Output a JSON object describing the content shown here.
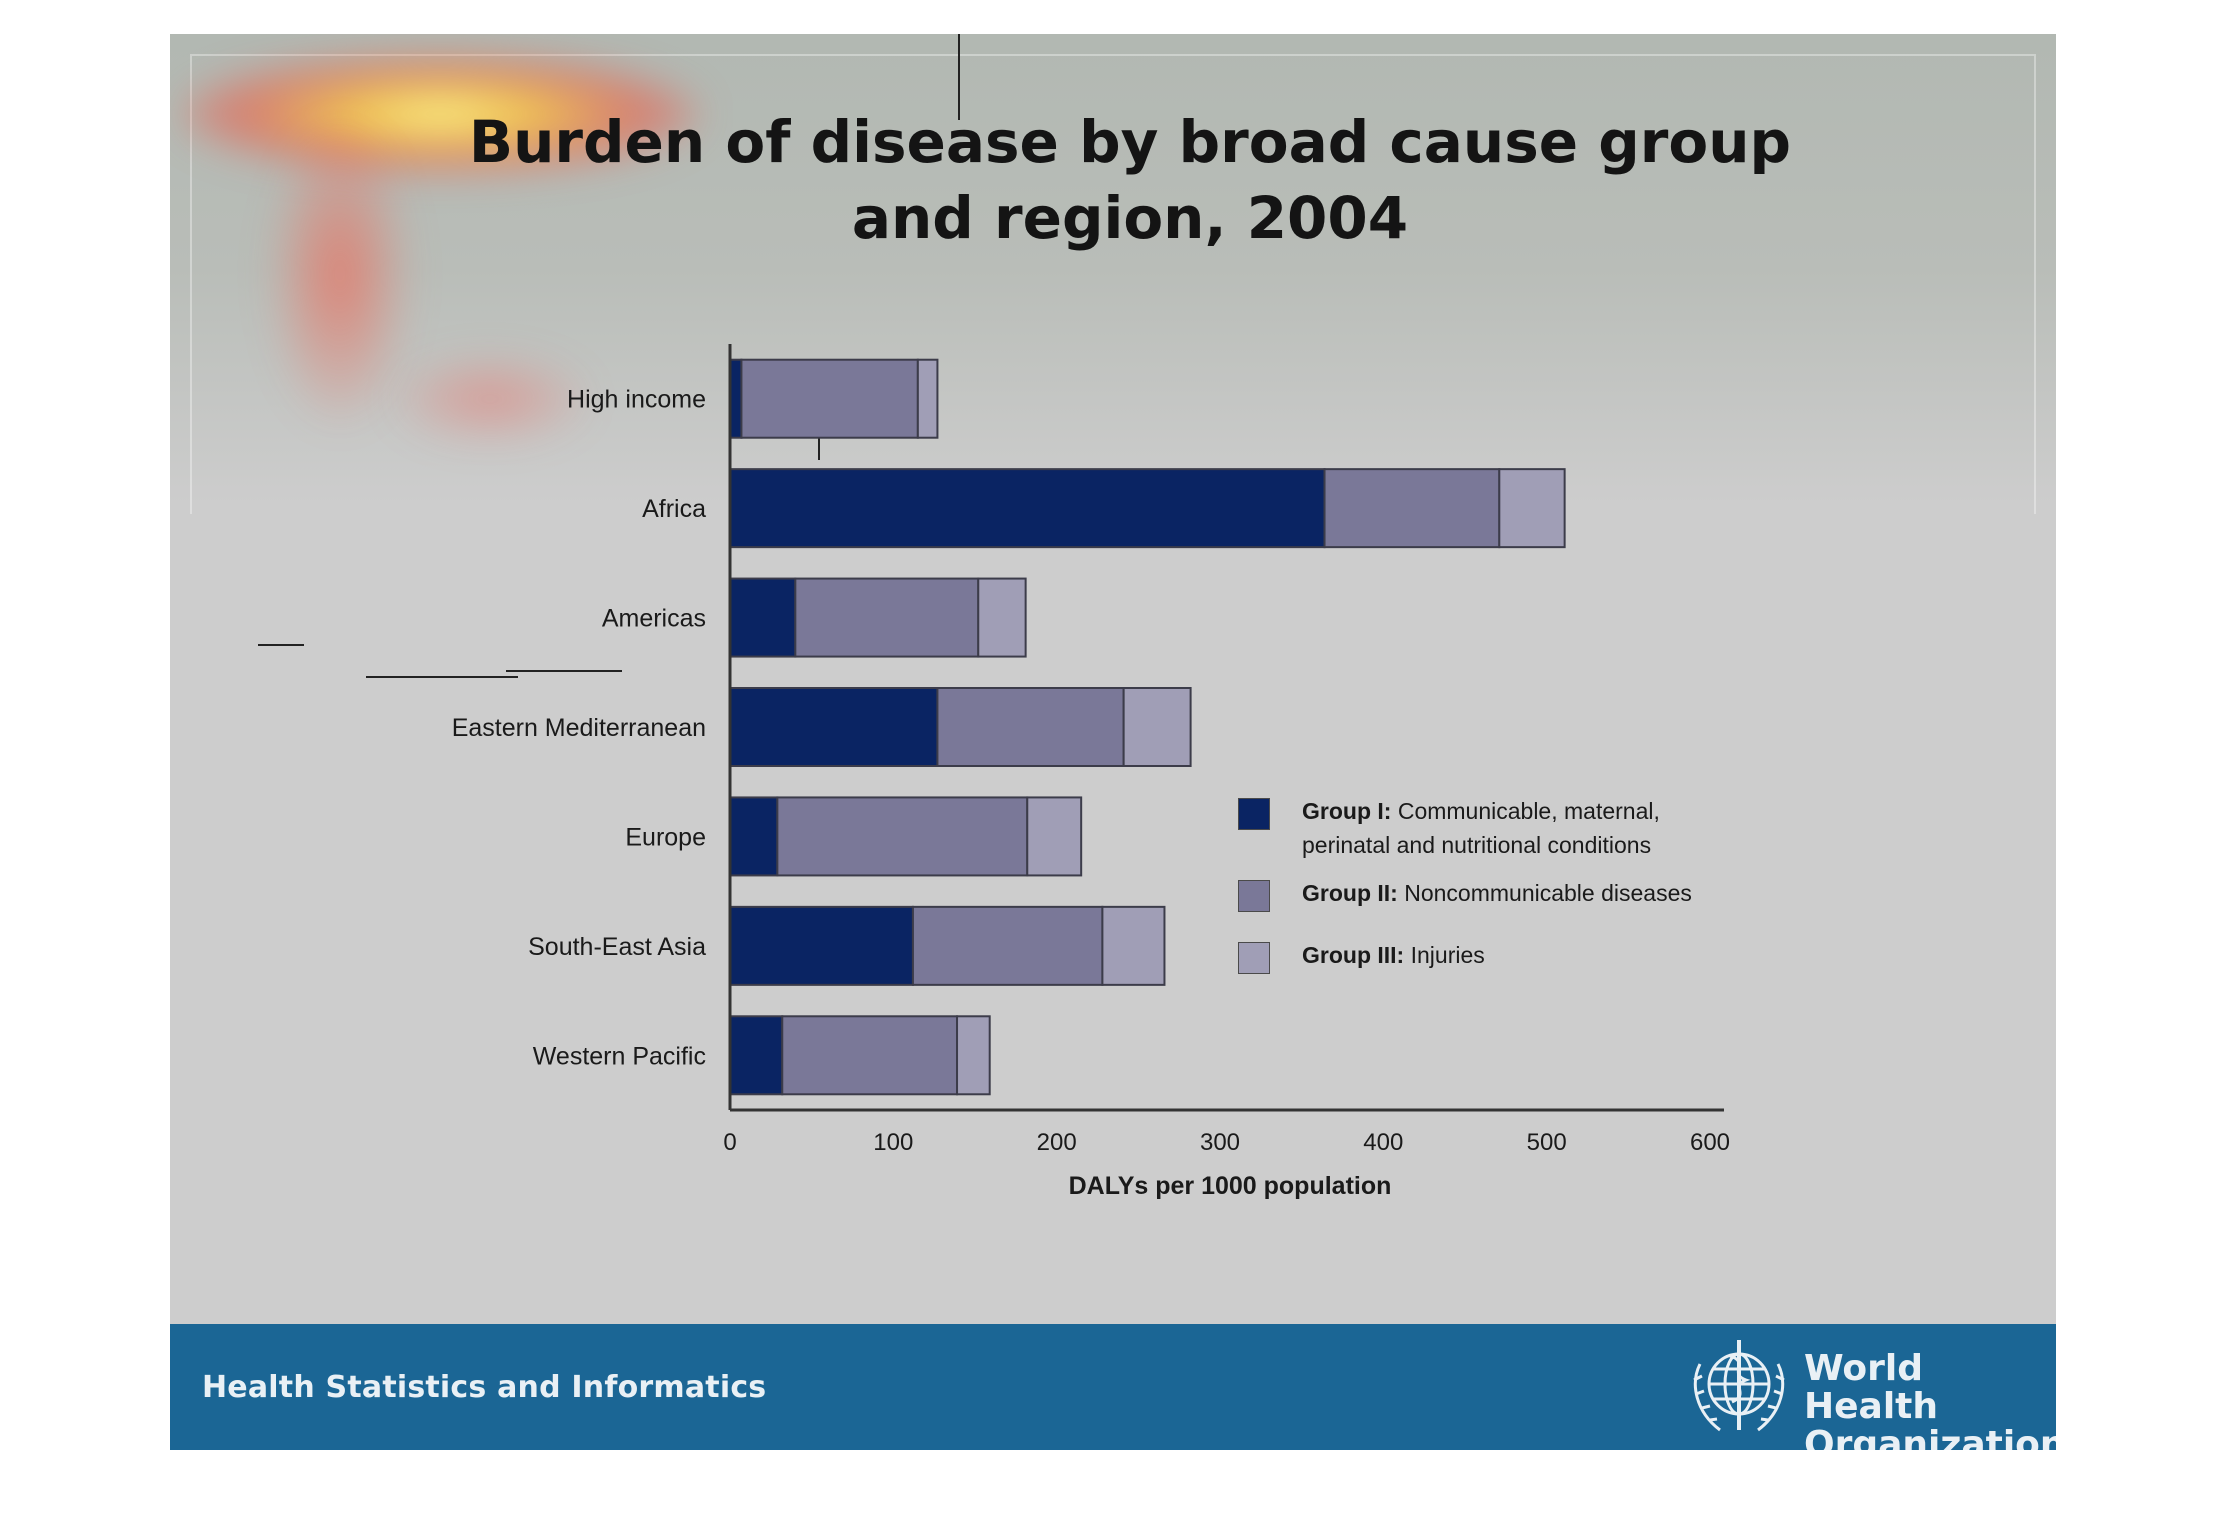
{
  "slide": {
    "title": "Burden of disease by broad cause group and region, 2004"
  },
  "footer": {
    "left_text": "Health Statistics and Informatics",
    "org_line1": "World Health",
    "org_line2": "Organization",
    "logo_icon": "who-emblem-icon"
  },
  "colors": {
    "group1": "#0a2463",
    "group2": "#7a7898",
    "group3": "#a09eb6",
    "footer": "#1b6695"
  },
  "legend": [
    {
      "bold": "Group I:",
      "text": "Communicable, maternal,",
      "text2": "perinatal and nutritional conditions",
      "color": "#0a2463"
    },
    {
      "bold": "Group II:",
      "text": "Noncommunicable diseases",
      "text2": "",
      "color": "#7a7898"
    },
    {
      "bold": "Group III:",
      "text": "Injuries",
      "text2": "",
      "color": "#a09eb6"
    }
  ],
  "chart_data": {
    "type": "bar",
    "orientation": "horizontal",
    "stacked": true,
    "categories": [
      "High income",
      "Africa",
      "Americas",
      "Eastern Mediterranean",
      "Europe",
      "South-East Asia",
      "Western Pacific"
    ],
    "series": [
      {
        "name": "Group I: Communicable, maternal, perinatal and nutritional conditions",
        "values": [
          7,
          364,
          40,
          127,
          29,
          112,
          32
        ]
      },
      {
        "name": "Group II: Noncommunicable diseases",
        "values": [
          108,
          107,
          112,
          114,
          153,
          116,
          107
        ]
      },
      {
        "name": "Group III: Injuries",
        "values": [
          12,
          40,
          29,
          41,
          33,
          38,
          20
        ]
      }
    ],
    "xlabel": "DALYs per 1000 population",
    "ylabel": "",
    "xlim": [
      0,
      600
    ],
    "xticks": [
      0,
      100,
      200,
      300,
      400,
      500,
      600
    ],
    "grid": false,
    "legend_position": "right"
  }
}
